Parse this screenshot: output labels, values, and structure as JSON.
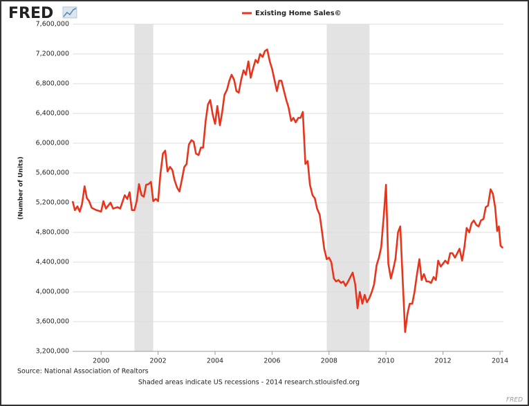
{
  "chart_data": {
    "type": "line",
    "logo": "FRED",
    "watermark": "FRED",
    "y_label": "(Number of Units)",
    "source": "Source: National Association of Realtors",
    "note": "Shaded areas indicate US recessions - 2014 research.stlouisfed.org",
    "grid": true,
    "legend": "top",
    "xlim": [
      1999,
      2014.12
    ],
    "xticks": [
      2000,
      2002,
      2004,
      2006,
      2008,
      2010,
      2012,
      2014
    ],
    "ylim": [
      3200000,
      7600000
    ],
    "yticks": [
      {
        "value": 3200000,
        "label": "3,200,000"
      },
      {
        "value": 3600000,
        "label": "3,600,000"
      },
      {
        "value": 4000000,
        "label": "4,000,000"
      },
      {
        "value": 4400000,
        "label": "4,400,000"
      },
      {
        "value": 4800000,
        "label": "4,800,000"
      },
      {
        "value": 5200000,
        "label": "5,200,000"
      },
      {
        "value": 5600000,
        "label": "5,600,000"
      },
      {
        "value": 6000000,
        "label": "6,000,000"
      },
      {
        "value": 6400000,
        "label": "6,400,000"
      },
      {
        "value": 6800000,
        "label": "6,800,000"
      },
      {
        "value": 7200000,
        "label": "7,200,000"
      },
      {
        "value": 7600000,
        "label": "7,600,000"
      }
    ],
    "recessions": [
      [
        2001.17,
        2001.83
      ],
      [
        2007.92,
        2009.42
      ]
    ],
    "recession_color": "#e3e3e3",
    "x": [
      1999,
      1999.08,
      1999.17,
      1999.25,
      1999.33,
      1999.42,
      1999.5,
      1999.58,
      1999.67,
      1999.83,
      2000,
      2000.08,
      2000.17,
      2000.33,
      2000.42,
      2000.58,
      2000.67,
      2000.83,
      2000.92,
      2001,
      2001.08,
      2001.17,
      2001.25,
      2001.33,
      2001.42,
      2001.5,
      2001.58,
      2001.67,
      2001.75,
      2001.83,
      2001.92,
      2002,
      2002.08,
      2002.17,
      2002.25,
      2002.33,
      2002.42,
      2002.5,
      2002.58,
      2002.67,
      2002.75,
      2002.83,
      2002.92,
      2003,
      2003.08,
      2003.17,
      2003.25,
      2003.33,
      2003.42,
      2003.5,
      2003.58,
      2003.67,
      2003.75,
      2003.83,
      2003.92,
      2004,
      2004.08,
      2004.17,
      2004.25,
      2004.33,
      2004.42,
      2004.5,
      2004.58,
      2004.67,
      2004.75,
      2004.83,
      2004.92,
      2005,
      2005.08,
      2005.17,
      2005.25,
      2005.33,
      2005.42,
      2005.5,
      2005.58,
      2005.67,
      2005.75,
      2005.83,
      2005.92,
      2006,
      2006.08,
      2006.17,
      2006.25,
      2006.33,
      2006.42,
      2006.5,
      2006.58,
      2006.67,
      2006.75,
      2006.83,
      2006.92,
      2007,
      2007.08,
      2007.17,
      2007.25,
      2007.33,
      2007.42,
      2007.5,
      2007.58,
      2007.67,
      2007.75,
      2007.83,
      2007.92,
      2008,
      2008.08,
      2008.17,
      2008.25,
      2008.33,
      2008.42,
      2008.5,
      2008.58,
      2008.67,
      2008.75,
      2008.83,
      2008.92,
      2009,
      2009.08,
      2009.17,
      2009.25,
      2009.33,
      2009.42,
      2009.5,
      2009.58,
      2009.67,
      2009.75,
      2009.83,
      2009.92,
      2010,
      2010.08,
      2010.17,
      2010.25,
      2010.33,
      2010.42,
      2010.5,
      2010.58,
      2010.67,
      2010.75,
      2010.83,
      2010.92,
      2011,
      2011.08,
      2011.17,
      2011.25,
      2011.33,
      2011.42,
      2011.5,
      2011.58,
      2011.67,
      2011.75,
      2011.83,
      2011.92,
      2012,
      2012.08,
      2012.17,
      2012.25,
      2012.33,
      2012.42,
      2012.5,
      2012.58,
      2012.67,
      2012.75,
      2012.83,
      2012.92,
      2013,
      2013.08,
      2013.17,
      2013.25,
      2013.33,
      2013.42,
      2013.5,
      2013.58,
      2013.67,
      2013.75,
      2013.83,
      2013.9,
      2013.96,
      2014.02,
      2014.1
    ],
    "series": [
      {
        "name": "Existing Home Sales©",
        "color": "#e8341c",
        "values": [
          5220000,
          5100000,
          5150000,
          5080000,
          5180000,
          5420000,
          5260000,
          5220000,
          5130000,
          5100000,
          5080000,
          5220000,
          5120000,
          5200000,
          5120000,
          5140000,
          5120000,
          5300000,
          5250000,
          5340000,
          5100000,
          5100000,
          5220000,
          5450000,
          5300000,
          5280000,
          5440000,
          5450000,
          5480000,
          5220000,
          5250000,
          5220000,
          5580000,
          5860000,
          5900000,
          5620000,
          5680000,
          5640000,
          5500000,
          5400000,
          5350000,
          5500000,
          5680000,
          5720000,
          5980000,
          6040000,
          6020000,
          5860000,
          5840000,
          5940000,
          5940000,
          6300000,
          6520000,
          6580000,
          6380000,
          6260000,
          6500000,
          6240000,
          6420000,
          6650000,
          6720000,
          6840000,
          6920000,
          6850000,
          6700000,
          6680000,
          6860000,
          6980000,
          6920000,
          7100000,
          6880000,
          7000000,
          7120000,
          7080000,
          7200000,
          7160000,
          7240000,
          7260000,
          7100000,
          7000000,
          6860000,
          6700000,
          6840000,
          6840000,
          6700000,
          6580000,
          6480000,
          6300000,
          6340000,
          6280000,
          6340000,
          6340000,
          6420000,
          5720000,
          5760000,
          5440000,
          5300000,
          5260000,
          5120000,
          5040000,
          4820000,
          4580000,
          4440000,
          4460000,
          4400000,
          4180000,
          4140000,
          4160000,
          4120000,
          4140000,
          4080000,
          4140000,
          4200000,
          4260000,
          4100000,
          3780000,
          4000000,
          3840000,
          3960000,
          3860000,
          3920000,
          4000000,
          4100000,
          4360000,
          4460000,
          4600000,
          5020000,
          5440000,
          4380000,
          4180000,
          4300000,
          4440000,
          4800000,
          4880000,
          4200000,
          3460000,
          3700000,
          3840000,
          3840000,
          4000000,
          4220000,
          4440000,
          4160000,
          4240000,
          4140000,
          4140000,
          4120000,
          4200000,
          4160000,
          4420000,
          4340000,
          4380000,
          4420000,
          4380000,
          4520000,
          4520000,
          4460000,
          4520000,
          4580000,
          4420000,
          4600000,
          4860000,
          4800000,
          4920000,
          4960000,
          4900000,
          4880000,
          4960000,
          4980000,
          5140000,
          5160000,
          5380000,
          5320000,
          5140000,
          4820000,
          4880000,
          4620000,
          4590000
        ]
      }
    ]
  }
}
